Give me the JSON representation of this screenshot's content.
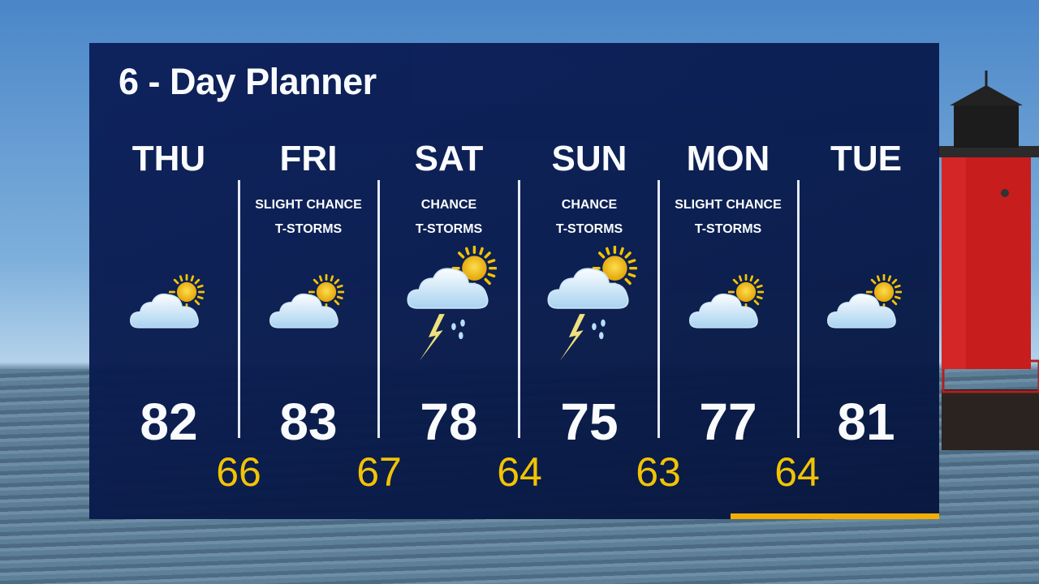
{
  "title": "6 - Day Planner",
  "accent_color": "#f7c600",
  "days": [
    {
      "day": "THU",
      "cond1": "",
      "cond2": "",
      "icon": "partly-cloudy-icon",
      "high": "82"
    },
    {
      "day": "FRI",
      "cond1": "SLIGHT CHANCE",
      "cond2": "T-STORMS",
      "icon": "partly-cloudy-icon",
      "high": "83"
    },
    {
      "day": "SAT",
      "cond1": "CHANCE",
      "cond2": "T-STORMS",
      "icon": "thunderstorm-icon",
      "high": "78"
    },
    {
      "day": "SUN",
      "cond1": "CHANCE",
      "cond2": "T-STORMS",
      "icon": "thunderstorm-icon",
      "high": "75"
    },
    {
      "day": "MON",
      "cond1": "SLIGHT CHANCE",
      "cond2": "T-STORMS",
      "icon": "partly-cloudy-icon",
      "high": "77"
    },
    {
      "day": "TUE",
      "cond1": "",
      "cond2": "",
      "icon": "partly-cloudy-icon",
      "high": "81"
    }
  ],
  "lows": [
    "66",
    "67",
    "64",
    "63",
    "64"
  ]
}
